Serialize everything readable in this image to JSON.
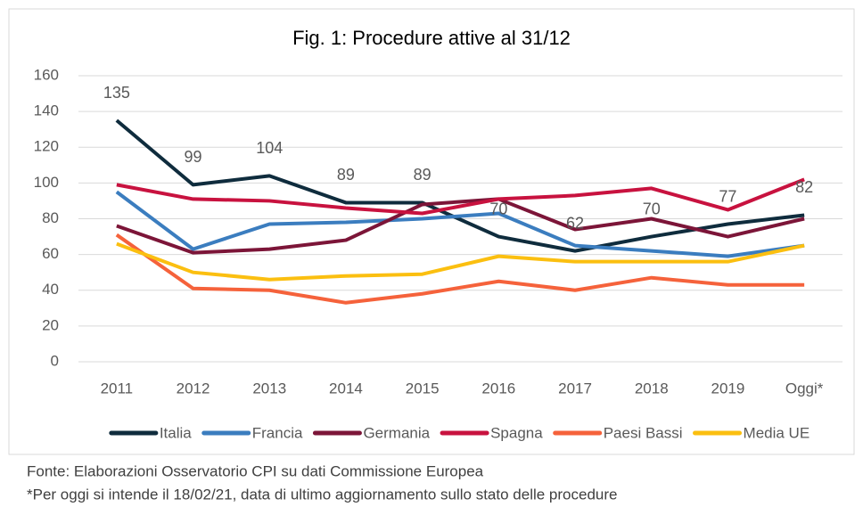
{
  "chart_data": {
    "type": "line",
    "title": "Fig. 1: Procedure attive al 31/12",
    "categories": [
      "2011",
      "2012",
      "2013",
      "2014",
      "2015",
      "2016",
      "2017",
      "2018",
      "2019",
      "Oggi*"
    ],
    "series": [
      {
        "name": "Italia",
        "color": "#0f2c3d",
        "values": [
          135,
          99,
          104,
          89,
          89,
          70,
          62,
          70,
          77,
          82
        ],
        "data_labels": true
      },
      {
        "name": "Francia",
        "color": "#3b7dbf",
        "values": [
          95,
          63,
          77,
          78,
          80,
          83,
          65,
          62,
          59,
          65
        ]
      },
      {
        "name": "Germania",
        "color": "#7c1538",
        "values": [
          76,
          61,
          63,
          68,
          88,
          91,
          74,
          80,
          70,
          80
        ]
      },
      {
        "name": "Spagna",
        "color": "#c8123f",
        "values": [
          99,
          91,
          90,
          86,
          83,
          91,
          93,
          97,
          85,
          102
        ]
      },
      {
        "name": "Paesi Bassi",
        "color": "#f5623b",
        "values": [
          71,
          41,
          40,
          33,
          38,
          45,
          40,
          47,
          43,
          43
        ]
      },
      {
        "name": "Media UE",
        "color": "#fbbf10",
        "values": [
          66,
          50,
          46,
          48,
          49,
          59,
          56,
          56,
          56,
          65
        ]
      }
    ],
    "ylim": [
      0,
      160
    ],
    "yticks": [
      0,
      20,
      40,
      60,
      80,
      100,
      120,
      140,
      160
    ],
    "grid": true,
    "legend": "bottom",
    "notes": [
      "Fonte: Elaborazioni Osservatorio CPI su dati Commissione Europea",
      "*Per oggi si intende il 18/02/21, data di ultimo aggiornamento sullo stato delle procedure"
    ]
  }
}
